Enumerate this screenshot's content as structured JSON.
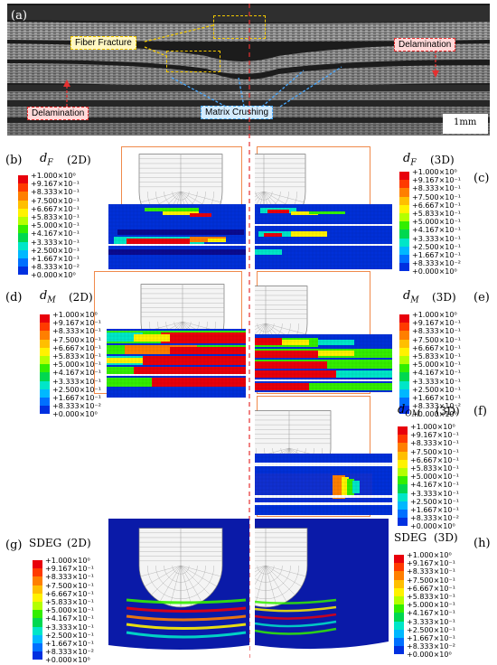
{
  "panel_a": {
    "letter": "(a)",
    "labels": {
      "fiber_fracture": "Fiber Fracture",
      "delamination_right": "Delamination",
      "delamination_left": "Delamination",
      "matrix_crushing": "Matrix Crushing",
      "scale_bar": "1mm"
    }
  },
  "legend_values": [
    "+1.000×10⁰",
    "+9.167×10⁻¹",
    "+8.333×10⁻¹",
    "+7.500×10⁻¹",
    "+6.667×10⁻¹",
    "+5.833×10⁻¹",
    "+5.000×10⁻¹",
    "+4.167×10⁻¹",
    "+3.333×10⁻¹",
    "+2.500×10⁻¹",
    "+1.667×10⁻¹",
    "+8.333×10⁻²",
    "+0.000×10⁰"
  ],
  "legend_colors": [
    "#e8000b",
    "#ff3a00",
    "#ff7f00",
    "#ffbf00",
    "#fff200",
    "#b4ff00",
    "#33ee00",
    "#00d850",
    "#00e6c8",
    "#00b8ff",
    "#0070ff",
    "#0030e0",
    "#0000c0"
  ],
  "panels": {
    "b": {
      "letter": "(b)",
      "var": "d",
      "sub": "F",
      "mode": "(2D)"
    },
    "c": {
      "letter": "(c)",
      "var": "d",
      "sub": "F",
      "mode": "(3D)"
    },
    "d": {
      "letter": "(d)",
      "var": "d",
      "sub": "M",
      "mode": "(2D)"
    },
    "e": {
      "letter": "(e)",
      "var": "d",
      "sub": "M",
      "mode": "(3D)"
    },
    "f": {
      "letter": "(f)",
      "var": "d",
      "sub": "OM",
      "mode": "(3D)"
    },
    "g": {
      "letter": "(g)",
      "var": "SDEG",
      "sub": "",
      "mode": "(2D)"
    },
    "h": {
      "letter": "(h)",
      "var": "SDEG",
      "sub": "",
      "mode": "(3D)"
    }
  }
}
